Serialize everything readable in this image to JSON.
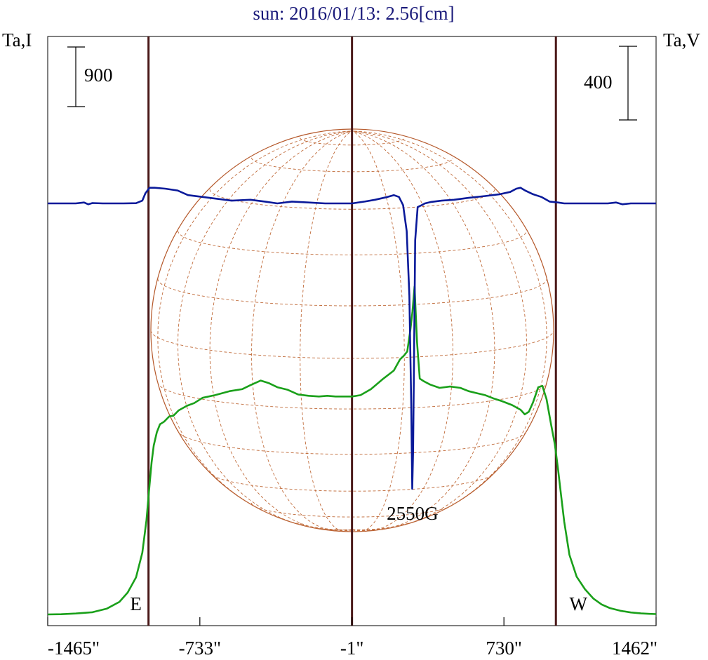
{
  "chart_data": {
    "type": "line",
    "title": "sun: 2016/01/13: 2.56[cm]",
    "left_axis_label": "Ta,I",
    "right_axis_label": "Ta,V",
    "x_ticks": [
      {
        "value": -1465,
        "label": "-1465\""
      },
      {
        "value": -733,
        "label": "-733\""
      },
      {
        "value": -1,
        "label": "-1\""
      },
      {
        "value": 730,
        "label": "730\""
      },
      {
        "value": 1462,
        "label": "1462\""
      }
    ],
    "xlim": [
      -1465,
      1462
    ],
    "scale_bars": {
      "intensity": {
        "label": "900",
        "value": 900
      },
      "polarization": {
        "label": "400",
        "value": 400
      }
    },
    "limb_markers": [
      {
        "label": "E",
        "x": -980
      },
      {
        "label": "W",
        "x": 980
      }
    ],
    "center_marker_x": -1,
    "annotation": {
      "text": "2550G",
      "x": 290
    },
    "colors": {
      "title": "#1a1a7a",
      "intensity": "#1aa01a",
      "polarization": "#0a1a9a",
      "markers": "#4a1818",
      "disk": "#b5582a",
      "grid": "#c06b3a",
      "text": "#000000"
    },
    "series": [
      {
        "key": "intensity",
        "x": [
          -1465,
          -1400,
          -1330,
          -1250,
          -1180,
          -1120,
          -1080,
          -1040,
          -1010,
          -990,
          -975,
          -965,
          -955,
          -940,
          -925,
          -905,
          -880,
          -860,
          -835,
          -795,
          -760,
          -720,
          -660,
          -590,
          -530,
          -490,
          -440,
          -400,
          -360,
          -310,
          -260,
          -210,
          -160,
          -120,
          -80,
          -40,
          -1,
          40,
          90,
          150,
          200,
          230,
          250,
          265,
          280,
          290,
          300,
          312,
          325,
          345,
          375,
          420,
          470,
          520,
          560,
          600,
          640,
          680,
          720,
          770,
          810,
          830,
          850,
          870,
          895,
          915,
          935,
          955,
          975,
          990,
          1005,
          1020,
          1045,
          1080,
          1120,
          1160,
          1200,
          1240,
          1290,
          1340,
          1390,
          1430,
          1462
        ],
        "y": [
          0,
          3,
          14,
          33,
          88,
          190,
          330,
          560,
          930,
          1420,
          1950,
          2300,
          2550,
          2750,
          2870,
          2910,
          2990,
          3000,
          3080,
          3150,
          3190,
          3270,
          3310,
          3370,
          3400,
          3460,
          3530,
          3490,
          3430,
          3390,
          3320,
          3300,
          3290,
          3300,
          3290,
          3290,
          3290,
          3310,
          3400,
          3560,
          3680,
          3850,
          3910,
          3970,
          4300,
          4570,
          4950,
          4100,
          3560,
          3520,
          3470,
          3420,
          3440,
          3420,
          3370,
          3340,
          3310,
          3260,
          3220,
          3160,
          3090,
          3020,
          3060,
          3200,
          3430,
          3450,
          3250,
          2900,
          2570,
          2200,
          1800,
          1400,
          900,
          570,
          380,
          240,
          150,
          95,
          55,
          30,
          15,
          8,
          5
        ]
      },
      {
        "key": "polarization",
        "x": [
          -1465,
          -1330,
          -1290,
          -1270,
          -1250,
          -1200,
          -1100,
          -1040,
          -1010,
          -995,
          -975,
          -950,
          -900,
          -840,
          -790,
          -720,
          -650,
          -580,
          -490,
          -420,
          -360,
          -290,
          -210,
          -130,
          -60,
          -1,
          60,
          110,
          170,
          200,
          225,
          245,
          262,
          275,
          284,
          289,
          293,
          297,
          303,
          315,
          330,
          350,
          380,
          430,
          490,
          560,
          640,
          710,
          760,
          790,
          810,
          835,
          870,
          910,
          950,
          990,
          1020,
          1050,
          1100,
          1160,
          1230,
          1270,
          1300,
          1340,
          1400,
          1462
        ],
        "y": [
          0,
          0,
          5,
          -5,
          2,
          0,
          0,
          1,
          15,
          55,
          85,
          85,
          80,
          70,
          45,
          35,
          25,
          15,
          20,
          10,
          0,
          10,
          5,
          0,
          0,
          0,
          10,
          20,
          35,
          45,
          35,
          -10,
          -150,
          -500,
          -1100,
          -1550,
          -1350,
          -900,
          -200,
          -20,
          -12,
          0,
          8,
          15,
          20,
          30,
          40,
          50,
          62,
          80,
          85,
          68,
          50,
          35,
          10,
          5,
          0,
          0,
          0,
          0,
          0,
          5,
          -5,
          0,
          0,
          0
        ]
      }
    ]
  }
}
